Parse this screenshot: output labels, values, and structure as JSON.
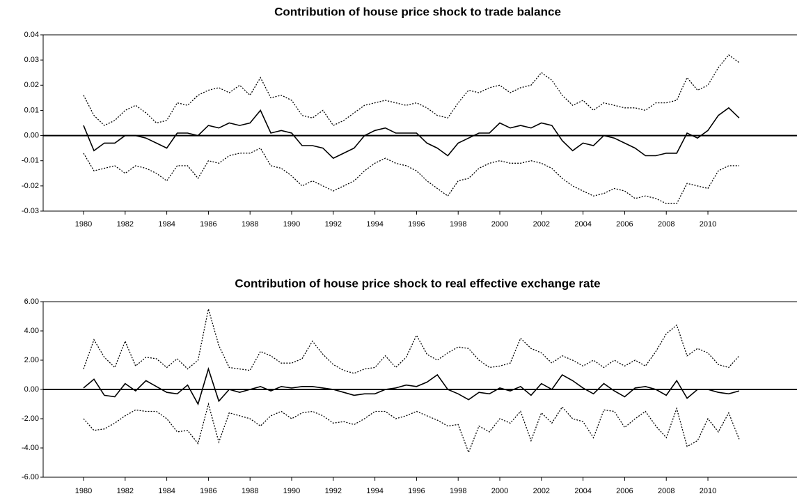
{
  "chart_data": [
    {
      "type": "line",
      "title": "Contribution of house price shock to trade balance",
      "x": [
        1980,
        1980.5,
        1981,
        1981.5,
        1982,
        1982.5,
        1983,
        1983.5,
        1984,
        1984.5,
        1985,
        1985.5,
        1986,
        1986.5,
        1987,
        1987.5,
        1988,
        1988.5,
        1989,
        1989.5,
        1990,
        1990.5,
        1991,
        1991.5,
        1992,
        1992.5,
        1993,
        1993.5,
        1994,
        1994.5,
        1995,
        1995.5,
        1996,
        1996.5,
        1997,
        1997.5,
        1998,
        1998.5,
        1999,
        1999.5,
        2000,
        2000.5,
        2001,
        2001.5,
        2002,
        2002.5,
        2003,
        2003.5,
        2004,
        2004.5,
        2005,
        2005.5,
        2006,
        2006.5,
        2007,
        2007.5,
        2008,
        2008.5,
        2009,
        2009.5,
        2010,
        2010.5,
        2011,
        2011.5
      ],
      "series": [
        {
          "color": "#000000",
          "style": "solid",
          "values": [
            0.004,
            -0.006,
            -0.003,
            -0.003,
            0.0,
            0.0,
            -0.001,
            -0.003,
            -0.005,
            0.001,
            0.001,
            0.0,
            0.004,
            0.003,
            0.005,
            0.004,
            0.005,
            0.01,
            0.001,
            0.002,
            0.001,
            -0.004,
            -0.004,
            -0.005,
            -0.009,
            -0.007,
            -0.005,
            0.0,
            0.002,
            0.003,
            0.001,
            0.001,
            0.001,
            -0.003,
            -0.005,
            -0.008,
            -0.003,
            -0.001,
            0.001,
            0.001,
            0.005,
            0.003,
            0.004,
            0.003,
            0.005,
            0.004,
            -0.002,
            -0.006,
            -0.003,
            -0.004,
            0.0,
            -0.001,
            -0.003,
            -0.005,
            -0.008,
            -0.008,
            -0.007,
            -0.007,
            0.001,
            -0.001,
            0.002,
            0.008,
            0.011,
            0.007
          ]
        },
        {
          "color": "#000000",
          "style": "dotted",
          "values": [
            0.016,
            0.008,
            0.004,
            0.006,
            0.01,
            0.012,
            0.009,
            0.005,
            0.006,
            0.013,
            0.012,
            0.016,
            0.018,
            0.019,
            0.017,
            0.02,
            0.016,
            0.023,
            0.015,
            0.016,
            0.014,
            0.008,
            0.007,
            0.01,
            0.004,
            0.006,
            0.009,
            0.012,
            0.013,
            0.014,
            0.013,
            0.012,
            0.013,
            0.011,
            0.008,
            0.007,
            0.013,
            0.018,
            0.017,
            0.019,
            0.02,
            0.017,
            0.019,
            0.02,
            0.025,
            0.022,
            0.016,
            0.012,
            0.014,
            0.01,
            0.013,
            0.012,
            0.011,
            0.011,
            0.01,
            0.013,
            0.013,
            0.014,
            0.023,
            0.018,
            0.02,
            0.027,
            0.032,
            0.029
          ]
        },
        {
          "color": "#000000",
          "style": "dotted",
          "values": [
            -0.007,
            -0.014,
            -0.013,
            -0.012,
            -0.015,
            -0.012,
            -0.013,
            -0.015,
            -0.018,
            -0.012,
            -0.012,
            -0.017,
            -0.01,
            -0.011,
            -0.008,
            -0.007,
            -0.007,
            -0.005,
            -0.012,
            -0.013,
            -0.016,
            -0.02,
            -0.018,
            -0.02,
            -0.022,
            -0.02,
            -0.018,
            -0.014,
            -0.011,
            -0.009,
            -0.011,
            -0.012,
            -0.014,
            -0.018,
            -0.021,
            -0.024,
            -0.018,
            -0.017,
            -0.013,
            -0.011,
            -0.01,
            -0.011,
            -0.011,
            -0.01,
            -0.011,
            -0.013,
            -0.017,
            -0.02,
            -0.022,
            -0.024,
            -0.023,
            -0.021,
            -0.022,
            -0.025,
            -0.024,
            -0.025,
            -0.027,
            -0.027,
            -0.019,
            -0.02,
            -0.021,
            -0.014,
            -0.012,
            -0.012
          ]
        }
      ],
      "xlim": [
        1978.06,
        2014.28
      ],
      "xticks": [
        1980,
        1982,
        1984,
        1986,
        1988,
        1990,
        1992,
        1994,
        1996,
        1998,
        2000,
        2002,
        2004,
        2006,
        2008,
        2010
      ],
      "ylim": [
        -0.03,
        0.04
      ],
      "yticks": [
        {
          "value": -0.03,
          "label": "-0.03"
        },
        {
          "value": -0.02,
          "label": "-0.02"
        },
        {
          "value": -0.01,
          "label": "-0.01"
        },
        {
          "value": 0,
          "label": "0.00"
        },
        {
          "value": 0.01,
          "label": "0.01"
        },
        {
          "value": 0.02,
          "label": "0.02"
        },
        {
          "value": 0.03,
          "label": "0.03"
        },
        {
          "value": 0.04,
          "label": "0.04"
        }
      ]
    },
    {
      "type": "line",
      "title": "Contribution of house price shock to real effective exchange rate",
      "x": [
        1980,
        1980.5,
        1981,
        1981.5,
        1982,
        1982.5,
        1983,
        1983.5,
        1984,
        1984.5,
        1985,
        1985.5,
        1986,
        1986.5,
        1987,
        1987.5,
        1988,
        1988.5,
        1989,
        1989.5,
        1990,
        1990.5,
        1991,
        1991.5,
        1992,
        1992.5,
        1993,
        1993.5,
        1994,
        1994.5,
        1995,
        1995.5,
        1996,
        1996.5,
        1997,
        1997.5,
        1998,
        1998.5,
        1999,
        1999.5,
        2000,
        2000.5,
        2001,
        2001.5,
        2002,
        2002.5,
        2003,
        2003.5,
        2004,
        2004.5,
        2005,
        2005.5,
        2006,
        2006.5,
        2007,
        2007.5,
        2008,
        2008.5,
        2009,
        2009.5,
        2010,
        2010.5,
        2011,
        2011.5
      ],
      "series": [
        {
          "color": "#000000",
          "style": "solid",
          "values": [
            0.1,
            0.7,
            -0.4,
            -0.5,
            0.4,
            -0.1,
            0.6,
            0.2,
            -0.2,
            -0.3,
            0.3,
            -1.0,
            1.4,
            -0.8,
            0.0,
            -0.2,
            0.0,
            0.2,
            -0.1,
            0.2,
            0.1,
            0.2,
            0.2,
            0.1,
            0.0,
            -0.2,
            -0.4,
            -0.3,
            -0.3,
            0.0,
            0.1,
            0.3,
            0.2,
            0.5,
            1.0,
            0.0,
            -0.3,
            -0.7,
            -0.2,
            -0.3,
            0.1,
            -0.1,
            0.2,
            -0.4,
            0.4,
            0.0,
            1.0,
            0.6,
            0.1,
            -0.3,
            0.4,
            -0.1,
            -0.5,
            0.1,
            0.2,
            0.0,
            -0.4,
            0.6,
            -0.6,
            0.0,
            0.0,
            -0.2,
            -0.3,
            -0.1
          ]
        },
        {
          "color": "#000000",
          "style": "dotted",
          "values": [
            1.4,
            3.4,
            2.2,
            1.5,
            3.3,
            1.6,
            2.2,
            2.1,
            1.5,
            2.1,
            1.4,
            2.0,
            5.5,
            3.0,
            1.5,
            1.4,
            1.3,
            2.6,
            2.3,
            1.8,
            1.8,
            2.1,
            3.3,
            2.4,
            1.7,
            1.3,
            1.1,
            1.4,
            1.5,
            2.3,
            1.5,
            2.2,
            3.7,
            2.4,
            2.0,
            2.5,
            2.9,
            2.8,
            2.0,
            1.5,
            1.6,
            1.8,
            3.5,
            2.8,
            2.5,
            1.8,
            2.3,
            2.0,
            1.6,
            2.0,
            1.5,
            2.0,
            1.6,
            2.0,
            1.6,
            2.6,
            3.8,
            4.4,
            2.3,
            2.8,
            2.5,
            1.7,
            1.5,
            2.3
          ]
        },
        {
          "color": "#000000",
          "style": "dotted",
          "values": [
            -2.0,
            -2.8,
            -2.7,
            -2.3,
            -1.8,
            -1.4,
            -1.5,
            -1.5,
            -2.0,
            -2.9,
            -2.8,
            -3.7,
            -1.0,
            -3.6,
            -1.6,
            -1.8,
            -2.0,
            -2.5,
            -1.8,
            -1.5,
            -2.0,
            -1.6,
            -1.5,
            -1.8,
            -2.3,
            -2.2,
            -2.4,
            -2.0,
            -1.5,
            -1.5,
            -2.0,
            -1.8,
            -1.5,
            -1.8,
            -2.1,
            -2.5,
            -2.4,
            -4.3,
            -2.5,
            -2.9,
            -2.0,
            -2.3,
            -1.5,
            -3.5,
            -1.6,
            -2.3,
            -1.2,
            -2.0,
            -2.2,
            -3.3,
            -1.4,
            -1.5,
            -2.6,
            -2.0,
            -1.5,
            -2.5,
            -3.3,
            -1.3,
            -3.9,
            -3.5,
            -2.0,
            -2.9,
            -1.6,
            -3.4
          ]
        }
      ],
      "xlim": [
        1978.06,
        2014.28
      ],
      "xticks": [
        1980,
        1982,
        1984,
        1986,
        1988,
        1990,
        1992,
        1994,
        1996,
        1998,
        2000,
        2002,
        2004,
        2006,
        2008,
        2010
      ],
      "ylim": [
        -6,
        6
      ],
      "yticks": [
        {
          "value": -6,
          "label": "-6.00"
        },
        {
          "value": -4,
          "label": "-4.00"
        },
        {
          "value": -2,
          "label": "-2.00"
        },
        {
          "value": 0,
          "label": "0.00"
        },
        {
          "value": 2,
          "label": "2.00"
        },
        {
          "value": 4,
          "label": "4.00"
        },
        {
          "value": 6,
          "label": "6.00"
        }
      ]
    }
  ]
}
